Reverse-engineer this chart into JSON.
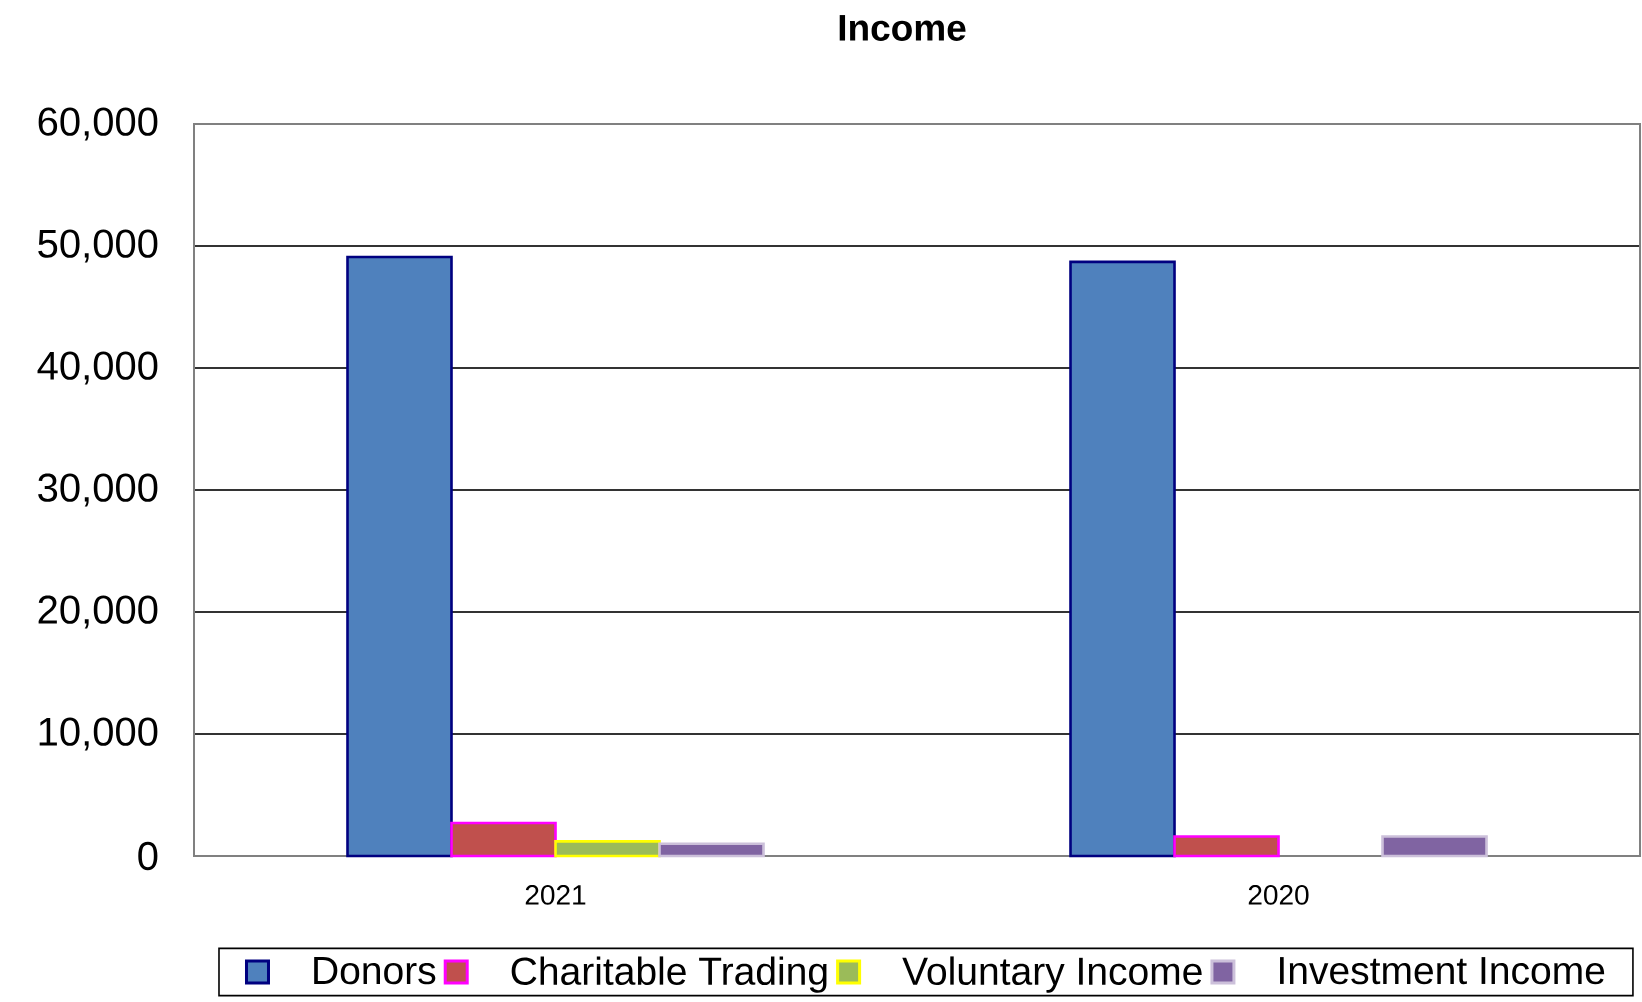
{
  "chart_data": {
    "type": "bar",
    "title": "Income",
    "categories": [
      "2021",
      "2020"
    ],
    "series": [
      {
        "name": "Donors",
        "color": "#4f81bd",
        "values": [
          49100,
          48700
        ]
      },
      {
        "name": "Charitable Trading",
        "color": "#c0504d",
        "values": [
          2700,
          1600
        ]
      },
      {
        "name": "Voluntary Income",
        "color": "#9bbb59",
        "values": [
          1200,
          null
        ]
      },
      {
        "name": "Investment Income",
        "color": "#8064a2",
        "values": [
          1000,
          1600
        ]
      }
    ],
    "ylim": [
      0,
      60000
    ],
    "yticks": [
      0,
      {
        "value": 10000,
        "label": "10,000"
      },
      {
        "value": 20000,
        "label": "20,000"
      },
      {
        "value": 30000,
        "label": "30,000"
      },
      {
        "value": 40000,
        "label": "40,000"
      },
      {
        "value": 50000,
        "label": "50,000"
      },
      {
        "value": 60000,
        "label": "60,000"
      }
    ],
    "grid": "y",
    "legend": "bottom"
  }
}
